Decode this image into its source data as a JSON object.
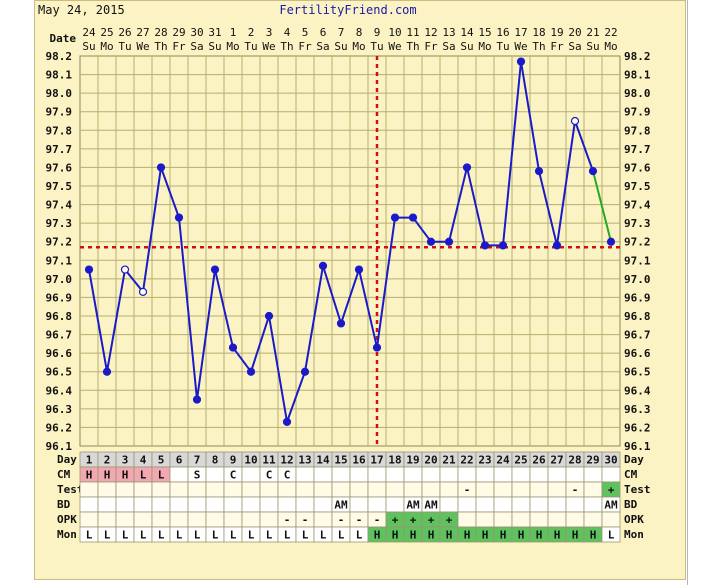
{
  "header": {
    "date": "May 24, 2015",
    "site": "FertilityFriend.com"
  },
  "colors": {
    "line": "#1a1ac8",
    "recent_line": "#22aa22",
    "coverline": "#cc1111",
    "grid": "#b4b070",
    "cm_red": "#f2a8b0",
    "fertile_green": "#5fc25f"
  },
  "chart_data": {
    "type": "line",
    "title": "",
    "xlabel": "Day",
    "ylabel": "",
    "ylim": [
      96.1,
      98.2
    ],
    "y_ticks": [
      "98.2",
      "98.1",
      "98.0",
      "97.9",
      "97.8",
      "97.7",
      "97.6",
      "97.5",
      "97.4",
      "97.3",
      "97.2",
      "97.1",
      "97.0",
      "96.9",
      "96.8",
      "96.7",
      "96.6",
      "96.5",
      "96.4",
      "96.3",
      "96.2",
      "96.1"
    ],
    "dates": [
      "24",
      "25",
      "26",
      "27",
      "28",
      "29",
      "30",
      "31",
      "1",
      "2",
      "3",
      "4",
      "5",
      "6",
      "7",
      "8",
      "9",
      "10",
      "11",
      "12",
      "13",
      "14",
      "15",
      "16",
      "17",
      "18",
      "19",
      "20",
      "21",
      "22"
    ],
    "weekdays": [
      "Su",
      "Mo",
      "Tu",
      "We",
      "Th",
      "Fr",
      "Sa",
      "Su",
      "Mo",
      "Tu",
      "We",
      "Th",
      "Fr",
      "Sa",
      "Su",
      "Mo",
      "Tu",
      "We",
      "Th",
      "Fr",
      "Sa",
      "Su",
      "Mo",
      "Tu",
      "We",
      "Th",
      "Fr",
      "Sa",
      "Su",
      "Mo"
    ],
    "days": [
      1,
      2,
      3,
      4,
      5,
      6,
      7,
      8,
      9,
      10,
      11,
      12,
      13,
      14,
      15,
      16,
      17,
      18,
      19,
      20,
      21,
      22,
      23,
      24,
      25,
      26,
      27,
      28,
      29,
      30
    ],
    "temps": [
      97.05,
      96.5,
      97.05,
      96.93,
      97.6,
      97.33,
      96.35,
      97.05,
      96.63,
      96.5,
      96.8,
      96.23,
      96.5,
      97.07,
      96.76,
      97.05,
      96.63,
      97.33,
      97.33,
      97.2,
      97.2,
      97.6,
      97.18,
      97.18,
      98.17,
      97.58,
      97.18,
      97.85,
      97.58,
      97.2
    ],
    "open_points": [
      3,
      4,
      28
    ],
    "recent_segment_from_day": 29,
    "coverline": 97.17,
    "ovulation_day": 17,
    "rows": {
      "Day": "Day",
      "CM": {
        "label": "CM",
        "values": [
          "H",
          "H",
          "H",
          "L",
          "L",
          "",
          "S",
          "",
          "C",
          "",
          "C",
          "C",
          "",
          "",
          "",
          "",
          "",
          "",
          "",
          "",
          "",
          "",
          "",
          "",
          "",
          "",
          "",
          "",
          "",
          ""
        ]
      },
      "Test": {
        "label": "Test",
        "values": [
          "",
          "",
          "",
          "",
          "",
          "",
          "",
          "",
          "",
          "",
          "",
          "",
          "",
          "",
          "",
          "",
          "",
          "",
          "",
          "",
          "",
          "-",
          "",
          "",
          "",
          "",
          "",
          "-",
          "",
          "+"
        ]
      },
      "BD": {
        "label": "BD",
        "values": [
          "",
          "",
          "",
          "",
          "",
          "",
          "",
          "",
          "",
          "",
          "",
          "",
          "",
          "",
          "AM",
          "",
          "",
          "",
          "AM",
          "AM",
          "",
          "",
          "",
          "",
          "",
          "",
          "",
          "",
          "",
          "AM"
        ]
      },
      "OPK": {
        "label": "OPK",
        "values": [
          "",
          "",
          "",
          "",
          "",
          "",
          "",
          "",
          "",
          "",
          "",
          "-",
          "-",
          "",
          "-",
          "-",
          "-",
          "+",
          "+",
          "+",
          "+",
          "",
          "",
          "",
          "",
          "",
          "",
          "",
          "",
          ""
        ]
      },
      "Mon": {
        "label": "Mon",
        "values": [
          "L",
          "L",
          "L",
          "L",
          "L",
          "L",
          "L",
          "L",
          "L",
          "L",
          "L",
          "L",
          "L",
          "L",
          "L",
          "L",
          "H",
          "H",
          "H",
          "H",
          "H",
          "H",
          "H",
          "H",
          "H",
          "H",
          "H",
          "H",
          "H",
          "L"
        ]
      }
    }
  }
}
